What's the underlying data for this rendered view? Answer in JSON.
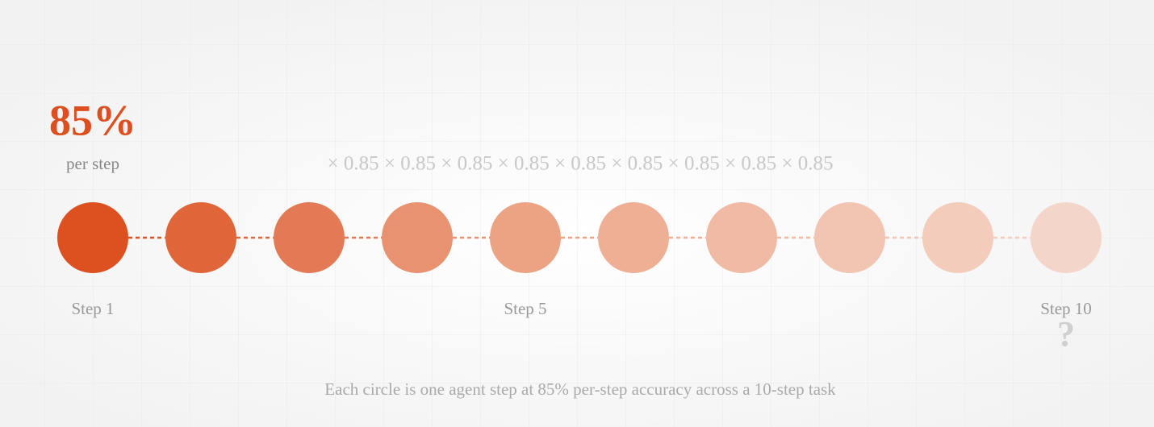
{
  "headline": {
    "value": "85%",
    "sub": "per step"
  },
  "multiplier": "× 0.85 × 0.85 × 0.85 × 0.85 × 0.85 × 0.85 × 0.85 × 0.85 × 0.85",
  "steps": [
    {
      "label": "Step 1",
      "color": "#dd5020"
    },
    {
      "label": null,
      "color": "#e0663a"
    },
    {
      "label": null,
      "color": "#e47a55"
    },
    {
      "label": null,
      "color": "#e8926f"
    },
    {
      "label": "Step 5",
      "color": "#eca383"
    },
    {
      "label": null,
      "color": "#eeaf95"
    },
    {
      "label": null,
      "color": "#f0baa4"
    },
    {
      "label": null,
      "color": "#f2c4b2"
    },
    {
      "label": null,
      "color": "#f3ccbc"
    },
    {
      "label": "Step 10",
      "color": "#f3d5c9"
    }
  ],
  "final_mark": "?",
  "caption": "Each circle is one agent step at 85% per-step accuracy across a 10-step task"
}
